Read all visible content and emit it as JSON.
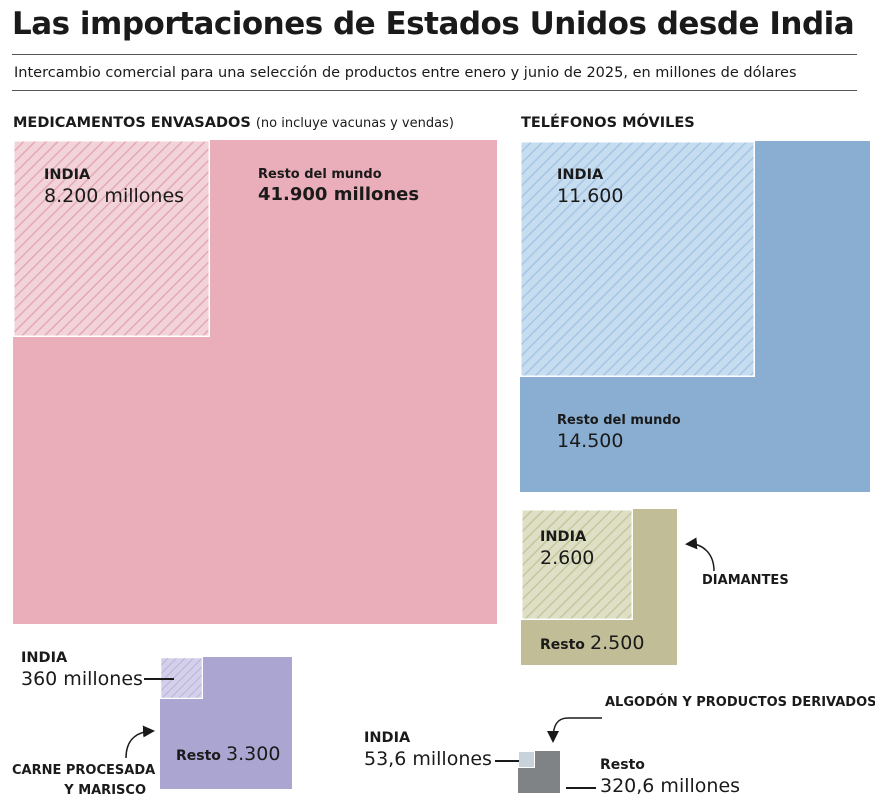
{
  "header": {
    "title": "Las importaciones de Estados Unidos desde India",
    "subtitle": "Intercambio comercial para una selección de productos entre enero y junio de 2025, en millones de dólares"
  },
  "colors": {
    "medicamentos": "#e9aeb9",
    "telefonos": "#8aaed1",
    "diamantes": "#c0bd97",
    "carne": "#aba5d1",
    "algodon": "#7f8386"
  },
  "chart_data": [
    {
      "type": "nested-squares",
      "name": "MEDICAMENTOS ENVASADOS",
      "note": "(no incluye vacunas y vendas)",
      "unit": "millones de dólares",
      "series": [
        {
          "name": "INDIA",
          "value": 8200,
          "label": "8.200 millones"
        },
        {
          "name": "Resto del mundo",
          "value": 41900,
          "label": "41.900 millones"
        }
      ]
    },
    {
      "type": "nested-squares",
      "name": "TELÉFONOS MÓVILES",
      "unit": "millones de dólares",
      "series": [
        {
          "name": "INDIA",
          "value": 11600,
          "label": "11.600"
        },
        {
          "name": "Resto del mundo",
          "value": 14500,
          "label": "14.500"
        }
      ]
    },
    {
      "type": "nested-squares",
      "name": "DIAMANTES",
      "unit": "millones de dólares",
      "series": [
        {
          "name": "INDIA",
          "value": 2600,
          "label": "2.600"
        },
        {
          "name": "Resto",
          "value": 2500,
          "label": "2.500"
        }
      ]
    },
    {
      "type": "nested-squares",
      "name": "CARNE PROCESADA Y MARISCO",
      "name_lines": [
        "CARNE PROCESADA",
        "Y MARISCO"
      ],
      "unit": "millones de dólares",
      "series": [
        {
          "name": "INDIA",
          "value": 360,
          "label": "360 millones"
        },
        {
          "name": "Resto",
          "value": 3300,
          "label": "3.300"
        }
      ]
    },
    {
      "type": "nested-squares",
      "name": "ALGODÓN Y PRODUCTOS DERIVADOS",
      "unit": "millones de dólares",
      "series": [
        {
          "name": "INDIA",
          "value": 53.6,
          "label": "53,6 millones"
        },
        {
          "name": "Resto",
          "value": 320.6,
          "label": "320,6 millones"
        }
      ]
    }
  ]
}
